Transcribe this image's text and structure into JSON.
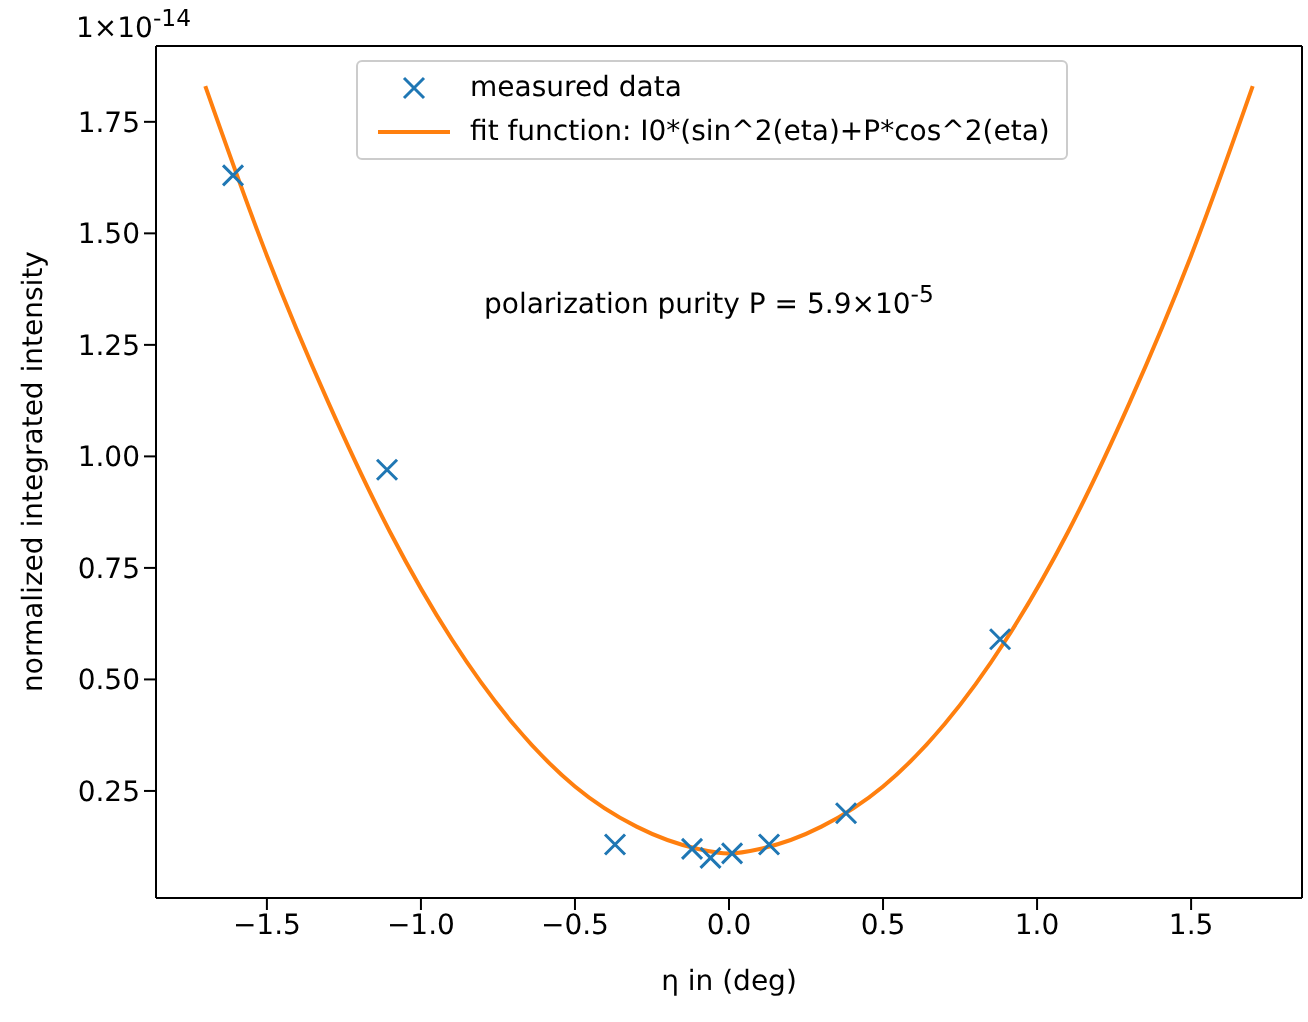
{
  "chart_data": {
    "type": "scatter",
    "xlabel": "η in (deg)",
    "ylabel": "normalized integrated intensity",
    "annotations": [
      "1×10$^{-14}$",
      "polarization purity P = 5.9×10$^{-5}$"
    ],
    "xlim": [
      -1.86,
      1.86
    ],
    "ylim": [
      0.01,
      1.92
    ],
    "xticks": [
      {
        "value": -1.5,
        "label": "−1.5"
      },
      {
        "value": -1.0,
        "label": "−1.0"
      },
      {
        "value": -0.5,
        "label": "−0.5"
      },
      {
        "value": 0,
        "label": "0.0"
      },
      0.5,
      {
        "value": 1,
        "label": "1.0"
      },
      1.5
    ],
    "yticks": [
      0.25,
      {
        "value": 0.5,
        "label": "0.50"
      },
      0.75,
      {
        "value": 1,
        "label": "1.00"
      },
      1.25,
      {
        "value": 1.5,
        "label": "1.50"
      },
      1.75
    ],
    "grid": false,
    "legend": "top",
    "series": [
      {
        "name": "measured data",
        "marker": "cross",
        "color": "#1f77b4",
        "x": [
          -1.61,
          -1.11,
          -0.37,
          -0.12,
          -0.06,
          0.01,
          0.13,
          0.38,
          0.88
        ],
        "values": [
          1.63,
          0.97,
          0.13,
          0.12,
          0.1,
          0.11,
          0.13,
          0.2,
          0.59
        ]
      },
      {
        "name": "fit function: I0*(sin^2(eta)+P*cos^2(eta)",
        "type": "line",
        "marker": "none",
        "line_style": "solid",
        "color": "#ff7f0e",
        "x": [
          -1.7,
          -1.5,
          -1.3,
          -1.1,
          -0.9,
          -0.7,
          -0.5,
          -0.3,
          -0.1,
          0,
          0.1,
          0.3,
          0.5,
          0.7,
          0.9,
          1.1,
          1.3,
          1.5,
          1.7
        ],
        "values": [
          1.83,
          1.45,
          1.12,
          0.83,
          0.59,
          0.4,
          0.26,
          0.17,
          0.12,
          0.11,
          0.12,
          0.17,
          0.26,
          0.4,
          0.59,
          0.83,
          1.12,
          1.45,
          1.83
        ]
      }
    ]
  }
}
